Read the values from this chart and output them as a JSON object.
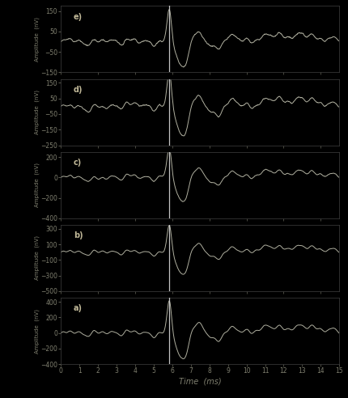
{
  "background_color": "#000000",
  "line_color": "#b0b0a0",
  "vline_color": "#d0d0d0",
  "text_color": "#c0b898",
  "tick_color": "#808070",
  "xlim": [
    0,
    15
  ],
  "xticks": [
    0,
    1,
    2,
    3,
    4,
    5,
    6,
    7,
    8,
    9,
    10,
    11,
    12,
    13,
    14,
    15
  ],
  "xlabel": "Time  (ms)",
  "vline_x": 5.85,
  "panels": [
    {
      "label": "e)",
      "ylim": [
        -150,
        175
      ],
      "yticks": [
        -150,
        -50,
        50,
        150
      ],
      "amp_scale": 0.38
    },
    {
      "label": "d)",
      "ylim": [
        -250,
        175
      ],
      "yticks": [
        -250,
        -150,
        -50,
        50,
        150
      ],
      "amp_scale": 0.55
    },
    {
      "label": "c)",
      "ylim": [
        -400,
        250
      ],
      "yticks": [
        -400,
        -200,
        0,
        200
      ],
      "amp_scale": 0.7
    },
    {
      "label": "b)",
      "ylim": [
        -500,
        350
      ],
      "yticks": [
        -500,
        -300,
        -100,
        100,
        300
      ],
      "amp_scale": 0.85
    },
    {
      "label": "a)",
      "ylim": [
        -400,
        450
      ],
      "yticks": [
        -400,
        -200,
        0,
        200,
        400
      ],
      "amp_scale": 1.0
    }
  ],
  "ylabel": "Amplitude  (nV)"
}
